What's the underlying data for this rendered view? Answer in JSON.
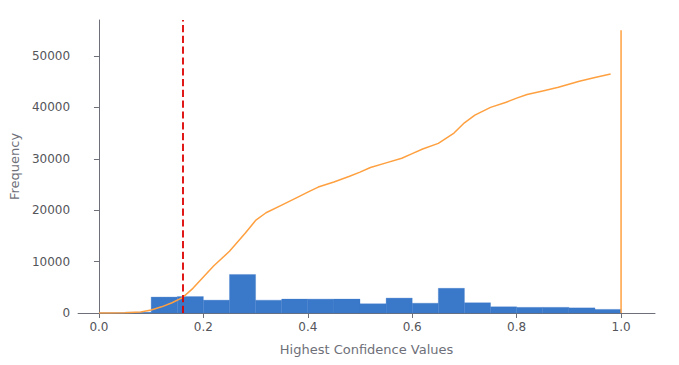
{
  "chart_data": {
    "type": "histogram",
    "xlabel": "Highest Confidence Values",
    "ylabel": "Frequency",
    "bins": [
      0.0,
      0.05,
      0.1,
      0.15,
      0.2,
      0.25,
      0.3,
      0.35,
      0.4,
      0.45,
      0.5,
      0.55,
      0.6,
      0.65,
      0.7,
      0.75,
      0.8,
      0.85,
      0.9,
      0.95,
      1.0
    ],
    "values": [
      50,
      150,
      3100,
      3200,
      2500,
      7500,
      2500,
      2700,
      2700,
      2700,
      1800,
      2900,
      1900,
      4800,
      2000,
      1200,
      1100,
      1100,
      1000,
      700
    ],
    "color": "#3a78c9",
    "xlim": [
      -0.04,
      1.065
    ],
    "ylim": [
      0,
      57000
    ],
    "xticks": [
      {
        "value": 0,
        "label": "0.0"
      },
      0.2,
      0.4,
      0.6,
      0.8,
      {
        "value": 1,
        "label": "1.0"
      }
    ],
    "yticks": [
      0,
      10000,
      20000,
      30000,
      40000,
      50000
    ],
    "grid": false,
    "series": [
      {
        "type": "line",
        "color": "#FFA040",
        "line_style": "solid",
        "x": [
          0.0,
          0.02,
          0.05,
          0.08,
          0.1,
          0.12,
          0.14,
          0.16,
          0.18,
          0.2,
          0.22,
          0.25,
          0.28,
          0.3,
          0.32,
          0.35,
          0.38,
          0.4,
          0.42,
          0.45,
          0.48,
          0.5,
          0.52,
          0.55,
          0.58,
          0.6,
          0.62,
          0.65,
          0.68,
          0.7,
          0.72,
          0.75,
          0.78,
          0.8,
          0.82,
          0.85,
          0.88,
          0.9,
          0.92,
          0.95,
          0.98
        ],
        "values": [
          0,
          10,
          50,
          200,
          600,
          1200,
          2000,
          3000,
          4800,
          7000,
          9200,
          12000,
          15500,
          18000,
          19500,
          21000,
          22500,
          23500,
          24500,
          25500,
          26600,
          27400,
          28300,
          29200,
          30100,
          31000,
          31900,
          33000,
          35000,
          37000,
          38500,
          40000,
          41000,
          41800,
          42500,
          43200,
          43900,
          44500,
          45100,
          45800,
          46500
        ]
      },
      {
        "type": "line",
        "color": "#FFA040",
        "line_style": "solid",
        "x": [
          1.0,
          1.0
        ],
        "values": [
          0,
          55000
        ]
      },
      {
        "type": "vline",
        "color": "#DD0000",
        "line_style": "dashed",
        "x": 0.163
      }
    ]
  }
}
